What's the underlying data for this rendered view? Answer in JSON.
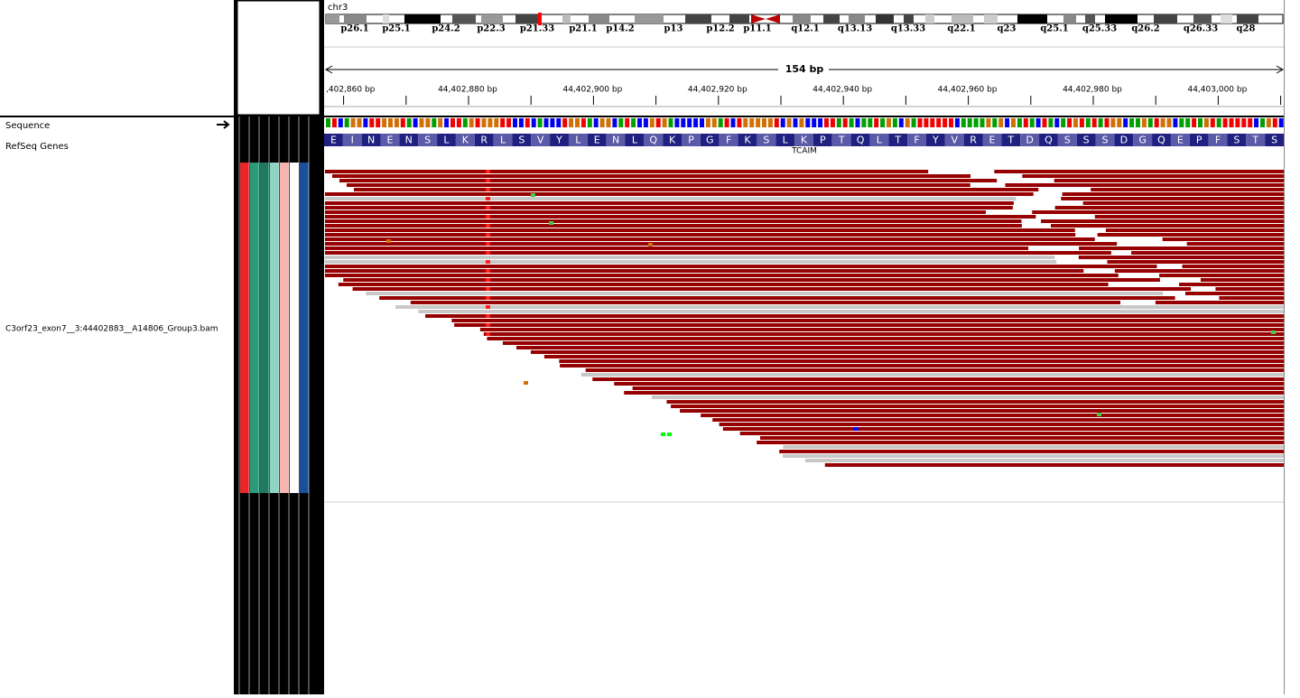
{
  "header": {
    "chromosome": "chr3",
    "bands": [
      "p26.1",
      "p25.1",
      "p24.2",
      "p22.3",
      "p21.33",
      "p21.1",
      "p14.2",
      "p13",
      "p12.2",
      "p11.1",
      "q12.1",
      "q13.13",
      "q13.33",
      "q22.1",
      "q23",
      "q25.1",
      "q25.33",
      "q26.2",
      "q26.33",
      "q28"
    ],
    "span": "154 bp",
    "ruler": [
      ",402,860 bp",
      "44,402,880 bp",
      "44,402,900 bp",
      "44,402,920 bp",
      "44,402,940 bp",
      "44,402,960 bp",
      "44,402,980 bp",
      "44,403,000 bp"
    ]
  },
  "tracks": {
    "sequence": "Sequence",
    "refseq": "RefSeq Genes",
    "bam": "C3orf23_exon7__3:44402883__A14806_Group3.bam"
  },
  "gene": {
    "name": "TCAIM",
    "amino_acids": [
      "E",
      "I",
      "N",
      "E",
      "N",
      "S",
      "L",
      "K",
      "R",
      "L",
      "S",
      "V",
      "Y",
      "L",
      "E",
      "N",
      "L",
      "Q",
      "K",
      "P",
      "G",
      "F",
      "K",
      "S",
      "L",
      "K",
      "P",
      "T",
      "Q",
      "L",
      "T",
      "F",
      "Y",
      "V",
      "R",
      "E",
      "T",
      "D",
      "Q",
      "S",
      "S",
      "S",
      "D",
      "G",
      "Q",
      "E",
      "P",
      "F",
      "S",
      "T",
      "S"
    ]
  }
}
